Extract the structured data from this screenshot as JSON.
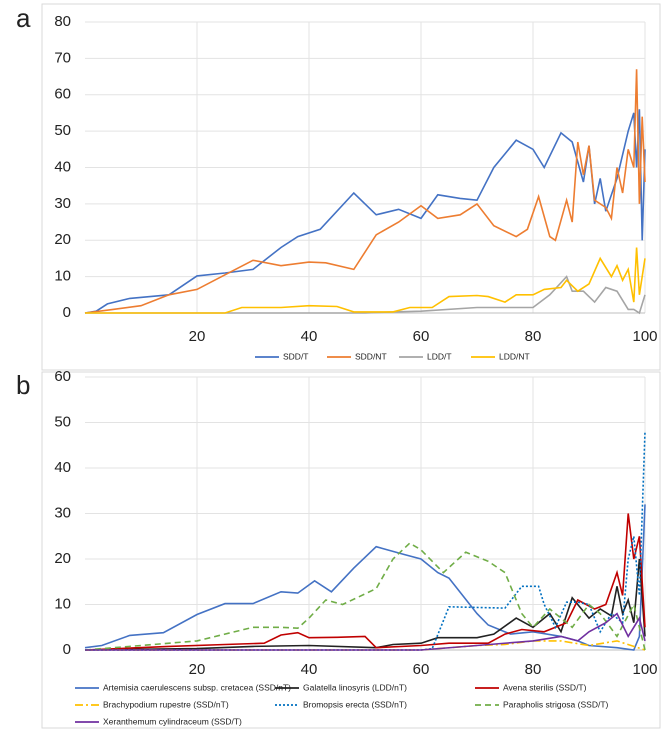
{
  "chart_data": [
    {
      "type": "line",
      "panel_label": "a",
      "xlim": [
        0,
        100
      ],
      "xticks": [
        20,
        40,
        60,
        80,
        100
      ],
      "ylim": [
        0,
        80
      ],
      "yticks": [
        0,
        10,
        20,
        30,
        40,
        50,
        60,
        70,
        80
      ],
      "grid": true,
      "legend": "bottom",
      "series": [
        {
          "name": "SDD/T",
          "color": "#4472c4",
          "dash": "solid",
          "x": [
            0,
            2,
            4,
            8,
            15,
            20,
            25,
            30,
            35,
            38,
            42,
            48,
            52,
            56,
            60,
            63,
            67,
            70,
            73,
            77,
            80,
            82,
            85,
            87,
            89,
            90,
            91,
            92,
            93,
            95,
            97,
            98,
            98.5,
            99,
            99.5,
            100
          ],
          "values": [
            0,
            0.5,
            2.5,
            4,
            5,
            10.2,
            11,
            12,
            18,
            21,
            23,
            33,
            27,
            28.5,
            26,
            32.5,
            31.5,
            31,
            40,
            47.5,
            45,
            40,
            49.5,
            47,
            36,
            46,
            30,
            37,
            28,
            37,
            50,
            55,
            40,
            56,
            20,
            45
          ]
        },
        {
          "name": "SDD/NT",
          "color": "#ed7d31",
          "dash": "solid",
          "x": [
            0,
            5,
            10,
            15,
            20,
            25,
            30,
            35,
            40,
            43,
            48,
            52,
            56,
            60,
            63,
            67,
            70,
            73,
            77,
            79,
            81,
            83,
            84,
            86,
            87,
            88,
            89,
            90,
            91,
            93,
            94,
            95,
            96,
            97,
            98,
            98.5,
            99,
            99.5,
            100
          ],
          "values": [
            0,
            1,
            2,
            5,
            6.5,
            10.5,
            14.5,
            13,
            14,
            13.8,
            12,
            21.5,
            25,
            29.5,
            26,
            27,
            30,
            24,
            21,
            23,
            32,
            21,
            20,
            31,
            25,
            47,
            38,
            46,
            31,
            29,
            26,
            40,
            33,
            45,
            40,
            67,
            30,
            54,
            36
          ]
        },
        {
          "name": "LDD/T",
          "color": "#a5a5a5",
          "dash": "solid",
          "x": [
            0,
            50,
            55,
            60,
            70,
            80,
            83,
            86,
            87,
            89,
            91,
            93,
            95,
            97,
            98,
            99,
            100
          ],
          "values": [
            0,
            0,
            0.3,
            0.5,
            1.5,
            1.5,
            5,
            10,
            6,
            6,
            3,
            7,
            6,
            1,
            1,
            0,
            5
          ]
        },
        {
          "name": "LDD/NT",
          "color": "#ffc000",
          "dash": "solid",
          "x": [
            0,
            25,
            28,
            35,
            40,
            45,
            48,
            55,
            58,
            62,
            65,
            70,
            72,
            75,
            77,
            80,
            82,
            85,
            86,
            88,
            90,
            92,
            94,
            95,
            96,
            97,
            98,
            98.5,
            99,
            100
          ],
          "values": [
            0,
            0,
            1.5,
            1.5,
            2,
            1.8,
            0.3,
            0.3,
            1.5,
            1.5,
            4.5,
            4.8,
            4.5,
            3,
            5,
            5,
            6.5,
            7,
            9,
            6,
            8,
            15,
            10,
            13,
            9,
            12,
            3,
            18,
            5,
            15
          ]
        }
      ]
    },
    {
      "type": "line",
      "panel_label": "b",
      "xlim": [
        0,
        100
      ],
      "xticks": [
        20,
        40,
        60,
        80,
        100
      ],
      "ylim": [
        0,
        60
      ],
      "yticks": [
        0,
        10,
        20,
        30,
        40,
        50,
        60
      ],
      "grid": true,
      "legend": "bottom",
      "series": [
        {
          "name": "Artemisia caerulescens subsp. cretacea (SSD/nT)",
          "color": "#4472c4",
          "dash": "solid",
          "x": [
            0,
            3,
            8,
            14,
            20,
            25,
            30,
            35,
            38,
            41,
            44,
            48,
            52,
            57,
            60,
            63,
            65,
            70,
            72,
            76,
            80,
            85,
            88,
            90,
            95,
            98,
            99,
            100
          ],
          "values": [
            0.5,
            1,
            3.2,
            3.8,
            7.8,
            10.2,
            10.2,
            12.8,
            12.5,
            15.2,
            12.8,
            18,
            22.7,
            21,
            20,
            17,
            15.8,
            8,
            5.5,
            3.5,
            4,
            3,
            2,
            1,
            0.5,
            0,
            3,
            32
          ]
        },
        {
          "name": "Galatella linosyris (LDD/nT)",
          "color": "#222222",
          "dash": "solid",
          "x": [
            0,
            20,
            30,
            40,
            52,
            55,
            60,
            63,
            70,
            73,
            77,
            80,
            83,
            85,
            87,
            90,
            92,
            94,
            95,
            96,
            97,
            98,
            99,
            100
          ],
          "values": [
            0,
            0.3,
            0.8,
            1,
            0.5,
            1.2,
            1.5,
            2.7,
            2.7,
            3.5,
            7,
            5,
            8,
            4,
            11.5,
            7,
            9,
            7.5,
            14,
            8,
            11,
            6,
            20,
            3
          ]
        },
        {
          "name": "Avena sterilis (SSD/T)",
          "color": "#c00000",
          "dash": "solid",
          "x": [
            0,
            15,
            25,
            32,
            35,
            38,
            40,
            45,
            50,
            52,
            60,
            65,
            72,
            75,
            78,
            82,
            86,
            88,
            91,
            93,
            95,
            96,
            97,
            98,
            99,
            100
          ],
          "values": [
            0,
            0.8,
            1.2,
            1.5,
            3.3,
            3.8,
            2.7,
            2.8,
            3,
            0.5,
            1,
            1.5,
            1.5,
            3.5,
            4.5,
            4,
            6,
            11,
            9,
            10,
            17,
            12,
            30,
            20,
            25,
            5
          ]
        },
        {
          "name": "Brachypodium rupestre (SSD/nT)",
          "color": "#ffc000",
          "dash": "dashdot",
          "x": [
            0,
            60,
            70,
            75,
            80,
            85,
            90,
            95,
            100
          ],
          "values": [
            0,
            0,
            1,
            1.2,
            2,
            2,
            1,
            2,
            0
          ]
        },
        {
          "name": "Bromopsis erecta (SSD/nT)",
          "color": "#0070c0",
          "dash": "dotted",
          "x": [
            0,
            60,
            62,
            65,
            75,
            78,
            81,
            82,
            84,
            86,
            88,
            90,
            92,
            94,
            96,
            97,
            98,
            99,
            100
          ],
          "values": [
            0,
            0,
            0.3,
            9.5,
            9.2,
            14,
            14,
            10,
            5,
            10.5,
            10.5,
            10,
            4,
            8,
            6,
            20,
            25,
            12,
            48
          ]
        },
        {
          "name": "Parapholis strigosa (SSD/T)",
          "color": "#70ad47",
          "dash": "dashed",
          "x": [
            0,
            10,
            20,
            30,
            35,
            38,
            40,
            43,
            46,
            52,
            55,
            58,
            60,
            64,
            68,
            72,
            75,
            78,
            80,
            83,
            87,
            90,
            92,
            95,
            98,
            100
          ],
          "values": [
            0,
            1,
            2,
            5,
            5,
            4.8,
            7,
            11,
            10,
            13.5,
            20,
            23.5,
            22,
            17,
            21.5,
            19.5,
            17,
            8,
            5,
            9,
            5,
            10,
            8,
            3,
            10,
            0
          ]
        },
        {
          "name": "Xeranthemum cylindraceum (SSD/T)",
          "color": "#7030a0",
          "dash": "solid",
          "x": [
            0,
            60,
            70,
            80,
            85,
            88,
            90,
            93,
            95,
            97,
            99,
            100
          ],
          "values": [
            0,
            0,
            1,
            2,
            3,
            2,
            4,
            6,
            8,
            3,
            7,
            2
          ]
        }
      ]
    }
  ]
}
